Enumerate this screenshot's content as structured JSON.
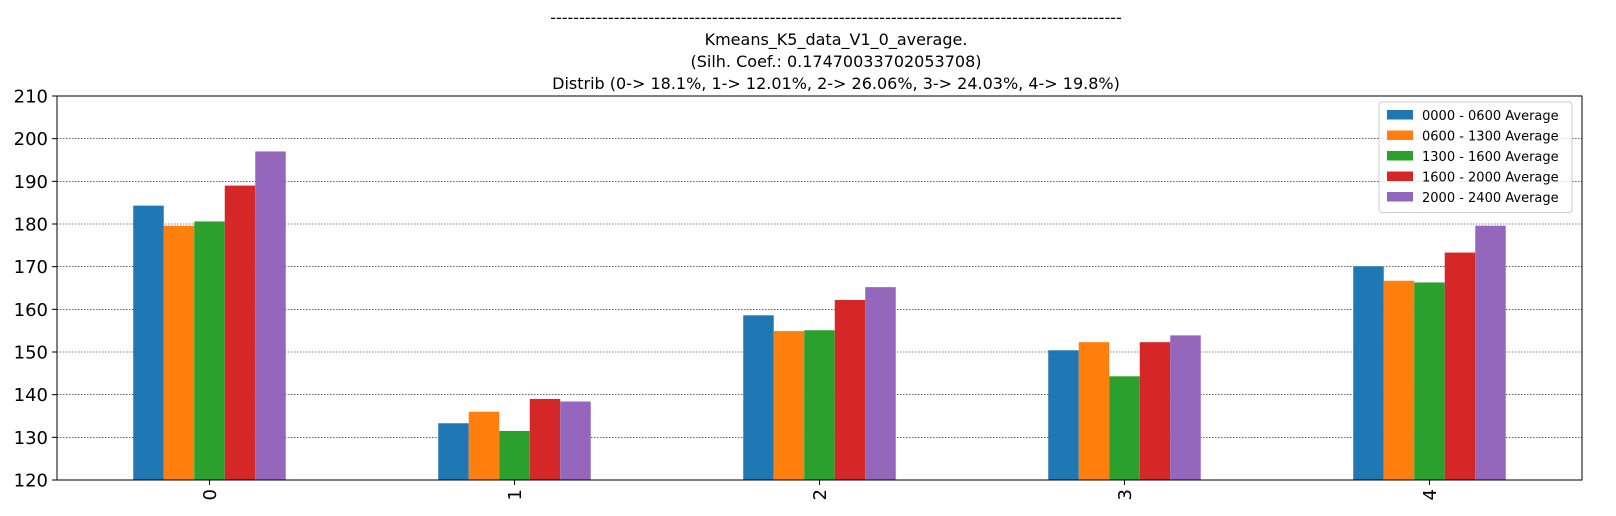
{
  "chart_data": {
    "type": "bar",
    "title_lines": [
      "---------------------------------------------------------------------------------------------------",
      "Kmeans_K5_data_V1_0_average.",
      "(Silh. Coef.: 0.17470033702053708)",
      "Distrib (0-> 18.1%, 1-> 12.01%, 2-> 26.06%, 3-> 24.03%, 4-> 19.8%)"
    ],
    "xlabel": "",
    "ylabel": "",
    "categories": [
      "0",
      "1",
      "2",
      "3",
      "4"
    ],
    "series": [
      {
        "name": "0000 - 0600 Average",
        "color": "#1f77b4",
        "values": [
          184.3,
          133.3,
          158.6,
          150.4,
          170.1
        ]
      },
      {
        "name": "0600 - 1300 Average",
        "color": "#ff7f0e",
        "values": [
          179.6,
          136.0,
          154.9,
          152.3,
          166.7
        ]
      },
      {
        "name": "1300 - 1600 Average",
        "color": "#2ca02c",
        "values": [
          180.6,
          131.5,
          155.1,
          144.3,
          166.3
        ]
      },
      {
        "name": "1600 - 2000 Average",
        "color": "#d62728",
        "values": [
          189.0,
          139.0,
          162.2,
          152.3,
          173.3
        ]
      },
      {
        "name": "2000 - 2400 Average",
        "color": "#9467bd",
        "values": [
          197.0,
          138.4,
          165.2,
          153.9,
          179.6
        ]
      }
    ],
    "ylim": [
      120,
      210
    ],
    "yticks": [
      120,
      130,
      140,
      150,
      160,
      170,
      180,
      190,
      200,
      210
    ],
    "grid": true,
    "legend_position": "top-right"
  }
}
